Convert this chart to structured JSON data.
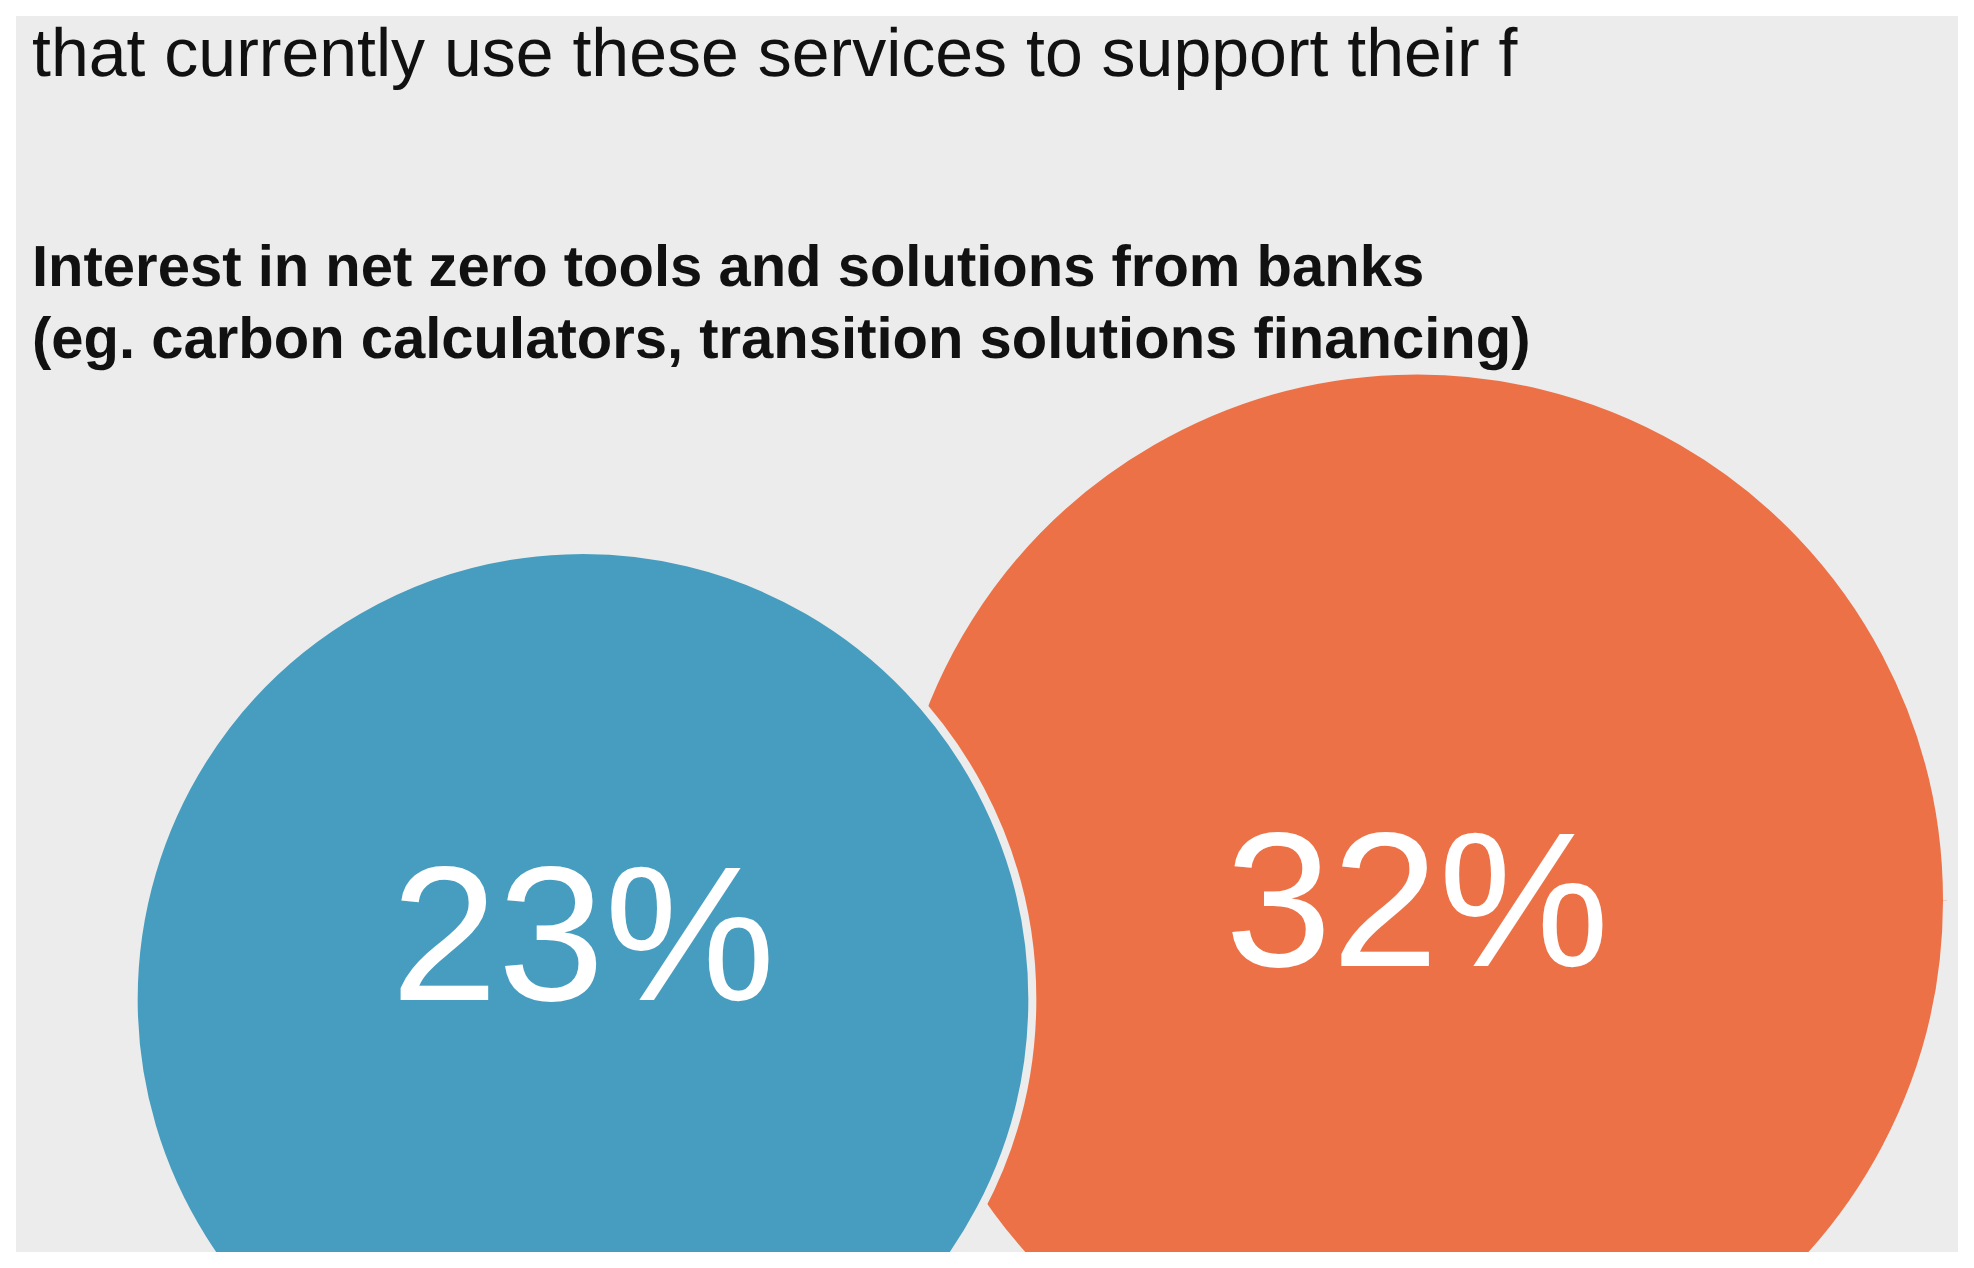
{
  "chart_data": {
    "type": "other",
    "title": "Interest in net zero tools and solutions from banks\n(eg. carbon calculators, transition solutions financing)",
    "annotations": [
      "that currently use these services to support their f"
    ],
    "categories": [
      null,
      null
    ],
    "values": [
      23,
      32
    ],
    "colors": [
      "#479dbf",
      "#ed7146"
    ],
    "value_labels": [
      "23%",
      "32%"
    ]
  }
}
